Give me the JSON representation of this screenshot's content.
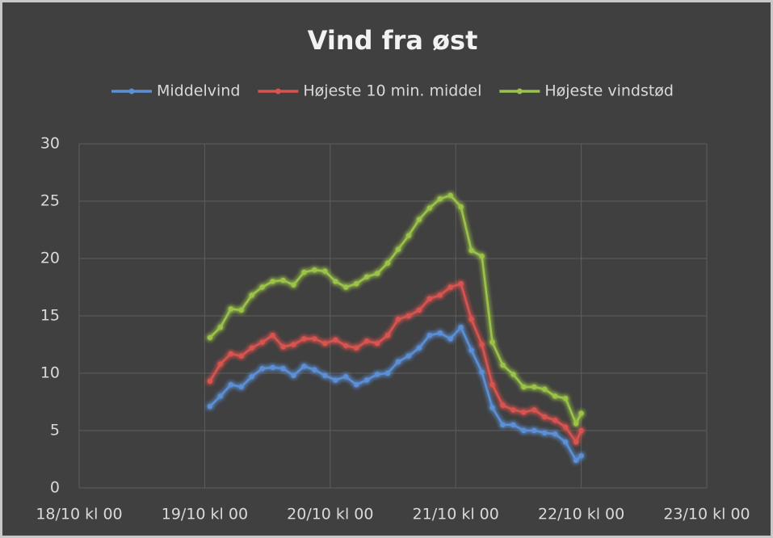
{
  "chart_data": {
    "type": "line",
    "title": "Vind fra øst",
    "x": [
      25,
      27,
      29,
      31,
      33,
      35,
      37,
      39,
      41,
      43,
      45,
      47,
      49,
      51,
      53,
      55,
      57,
      59,
      61,
      63,
      65,
      67,
      69,
      71,
      73,
      75,
      77,
      79,
      81,
      83,
      85,
      87,
      89,
      91,
      93,
      95,
      96
    ],
    "series": [
      {
        "name": "Middelvind",
        "color": "#5b8fd6",
        "values": [
          7.1,
          8.0,
          9.0,
          8.8,
          9.7,
          10.4,
          10.5,
          10.4,
          9.8,
          10.6,
          10.3,
          9.8,
          9.4,
          9.7,
          9.0,
          9.4,
          9.9,
          10.0,
          11.0,
          11.5,
          12.2,
          13.3,
          13.5,
          13.0,
          14.0,
          12.0,
          10.1,
          7.0,
          5.5,
          5.5,
          5.0,
          5.0,
          4.8,
          4.7,
          4.0,
          2.4,
          2.8
        ]
      },
      {
        "name": "Højeste 10 min. middel",
        "color": "#d9534f",
        "values": [
          9.3,
          10.8,
          11.7,
          11.5,
          12.2,
          12.7,
          13.3,
          12.3,
          12.5,
          13.0,
          13.0,
          12.6,
          12.9,
          12.4,
          12.2,
          12.8,
          12.6,
          13.3,
          14.7,
          15.0,
          15.5,
          16.5,
          16.8,
          17.5,
          17.8,
          14.7,
          12.5,
          9.0,
          7.2,
          6.8,
          6.6,
          6.8,
          6.2,
          5.9,
          5.3,
          4.0,
          5.0
        ]
      },
      {
        "name": "Højeste vindstød",
        "color": "#9bc34a",
        "values": [
          13.1,
          14.0,
          15.6,
          15.5,
          16.8,
          17.5,
          18.0,
          18.1,
          17.7,
          18.8,
          19.0,
          18.9,
          18.0,
          17.5,
          17.8,
          18.4,
          18.7,
          19.6,
          20.8,
          22.0,
          23.4,
          24.4,
          25.2,
          25.5,
          24.5,
          20.7,
          20.2,
          12.7,
          10.7,
          9.9,
          8.8,
          8.8,
          8.6,
          8.0,
          7.8,
          5.6,
          6.5
        ]
      }
    ],
    "xlim": [
      0,
      120
    ],
    "xticks": [
      {
        "value": 0,
        "label": "18/10 kl 00"
      },
      {
        "value": 24,
        "label": "19/10 kl 00"
      },
      {
        "value": 48,
        "label": "20/10 kl 00"
      },
      {
        "value": 72,
        "label": "21/10 kl 00"
      },
      {
        "value": 96,
        "label": "22/10 kl 00"
      },
      {
        "value": 120,
        "label": "23/10 kl 00"
      }
    ],
    "ylim": [
      0,
      30
    ],
    "yticks": [
      0,
      5,
      10,
      15,
      20,
      25,
      30
    ],
    "grid": true,
    "legend": "top"
  }
}
